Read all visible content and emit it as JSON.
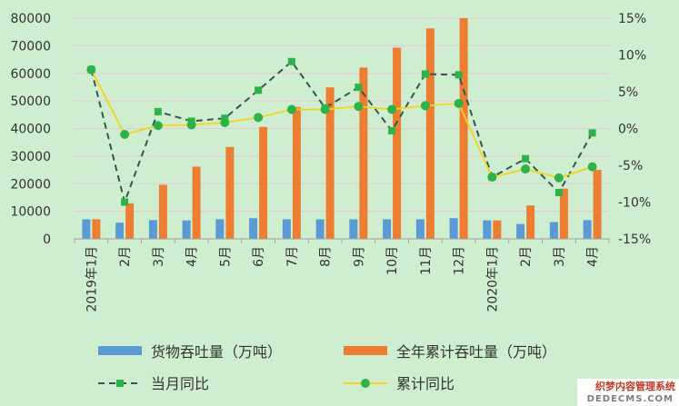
{
  "chart_data": {
    "type": "bar+line",
    "categories": [
      "2019年1月",
      "2月",
      "3月",
      "4月",
      "5月",
      "6月",
      "7月",
      "8月",
      "9月",
      "10月",
      "11月",
      "12月",
      "2020年1月",
      "2月",
      "3月",
      "4月"
    ],
    "left_axis": {
      "min": 0,
      "max": 80000,
      "step": 10000,
      "ticks": [
        "0",
        "10000",
        "20000",
        "30000",
        "40000",
        "50000",
        "60000",
        "70000",
        "80000"
      ]
    },
    "right_axis": {
      "min": -15,
      "max": 15,
      "step": 5,
      "ticks": [
        "-15%",
        "-10%",
        "-5%",
        "0%",
        "5%",
        "10%",
        "15%"
      ]
    },
    "grid": true,
    "legend_position": "bottom",
    "series": [
      {
        "name": "货物吞吐量（万吨）",
        "type": "bar",
        "axis": "left",
        "color": "#5b9bd5",
        "values": [
          7100,
          5900,
          6800,
          6700,
          7100,
          7500,
          7100,
          7100,
          7100,
          7100,
          7100,
          7500,
          6700,
          5400,
          6100,
          6800
        ]
      },
      {
        "name": "全年累计吞吐量（万吨）",
        "type": "bar",
        "axis": "left",
        "color": "#ed7d31",
        "values": [
          7100,
          12900,
          19600,
          26200,
          33300,
          40600,
          47800,
          54900,
          62100,
          69300,
          76300,
          80300,
          6700,
          12100,
          18200,
          25000
        ]
      },
      {
        "name": "当月同比",
        "type": "line",
        "axis": "right",
        "style": "dashed",
        "marker": "square",
        "color": "#2e5a4e",
        "marker_color": "#2db34a",
        "values": [
          8.0,
          -10.0,
          2.3,
          1.0,
          1.4,
          5.2,
          9.1,
          2.8,
          5.6,
          -0.3,
          7.4,
          7.3,
          -6.6,
          -4.1,
          -8.7,
          -0.6
        ]
      },
      {
        "name": "累计同比",
        "type": "line",
        "axis": "right",
        "style": "solid",
        "marker": "circle",
        "color": "#f5d31c",
        "marker_color": "#2db34a",
        "values": [
          8.0,
          -0.8,
          0.4,
          0.5,
          0.8,
          1.5,
          2.6,
          2.6,
          3.0,
          2.6,
          3.1,
          3.4,
          -6.6,
          -5.5,
          -6.7,
          -5.2
        ]
      }
    ]
  },
  "watermark": {
    "line1": "织梦内容管理系统",
    "line2": "DEDECMS.COM"
  }
}
